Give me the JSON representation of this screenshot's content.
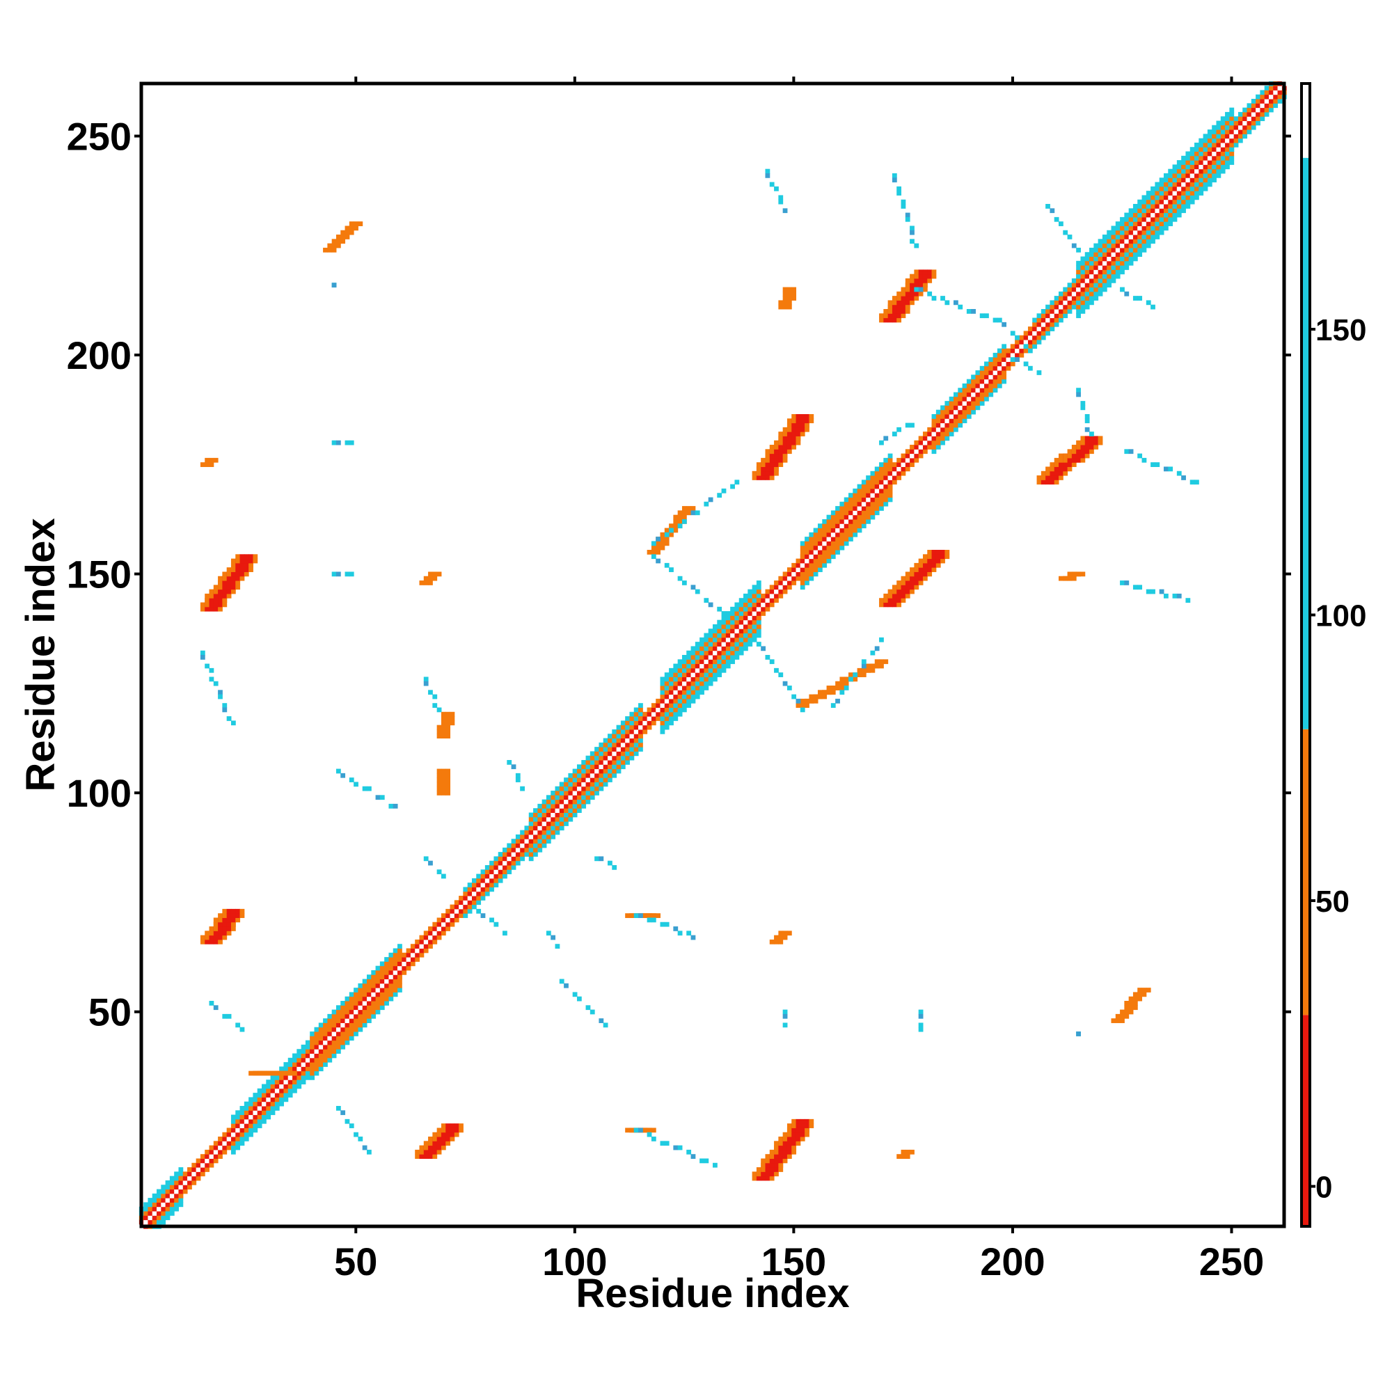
{
  "chart_data": {
    "type": "heatmap",
    "title": "",
    "xlabel": "Residue index",
    "ylabel": "Residue index",
    "xlim": [
      1,
      262
    ],
    "ylim": [
      1,
      262
    ],
    "x_ticks": [
      50,
      100,
      150,
      200,
      250
    ],
    "y_ticks": [
      50,
      100,
      150,
      200,
      250
    ],
    "colorbar": {
      "ticks": [
        0,
        50,
        100,
        150
      ],
      "range": [
        -7,
        193
      ],
      "bands": [
        {
          "from": -7,
          "to": 30,
          "color": "#e8190e"
        },
        {
          "from": 30,
          "to": 80,
          "color": "#f47a0c"
        },
        {
          "from": 80,
          "to": 180,
          "color": "#1fcbe0"
        },
        {
          "from": 180,
          "to": 193,
          "color": "#ffffff"
        }
      ]
    },
    "diagonal_segments": [
      {
        "start": 1,
        "end": 10,
        "width": 4,
        "color": "#1fcbe0"
      },
      {
        "start": 10,
        "end": 22,
        "width": 2,
        "color": "#e8190e"
      },
      {
        "start": 22,
        "end": 40,
        "width": 4,
        "color": "#1fcbe0"
      },
      {
        "start": 40,
        "end": 60,
        "width": 5,
        "color": "#f47a0c"
      },
      {
        "start": 60,
        "end": 75,
        "width": 2,
        "color": "#e8190e"
      },
      {
        "start": 75,
        "end": 90,
        "width": 3,
        "color": "#f47a0c"
      },
      {
        "start": 90,
        "end": 115,
        "width": 5,
        "color": "#1fcbe0"
      },
      {
        "start": 115,
        "end": 120,
        "width": 2,
        "color": "#e8190e"
      },
      {
        "start": 120,
        "end": 142,
        "width": 6,
        "color": "#1fcbe0"
      },
      {
        "start": 142,
        "end": 152,
        "width": 2,
        "color": "#e8190e"
      },
      {
        "start": 152,
        "end": 172,
        "width": 5,
        "color": "#f47a0c"
      },
      {
        "start": 172,
        "end": 182,
        "width": 2,
        "color": "#e8190e"
      },
      {
        "start": 182,
        "end": 198,
        "width": 4,
        "color": "#f47a0c"
      },
      {
        "start": 198,
        "end": 205,
        "width": 2,
        "color": "#e8190e"
      },
      {
        "start": 205,
        "end": 215,
        "width": 3,
        "color": "#f47a0c"
      },
      {
        "start": 215,
        "end": 250,
        "width": 6,
        "color": "#1fcbe0"
      },
      {
        "start": 250,
        "end": 262,
        "width": 3,
        "color": "#f47a0c"
      }
    ],
    "contact_strips": [
      {
        "x0": 17,
        "y0": 142,
        "x1": 25,
        "y1": 153,
        "width": 2,
        "color": "#e8190e"
      },
      {
        "x0": 17,
        "y0": 66,
        "x1": 22,
        "y1": 72,
        "width": 2,
        "color": "#e8190e"
      },
      {
        "x0": 66,
        "y0": 17,
        "x1": 72,
        "y1": 23,
        "width": 2,
        "color": "#e8190e"
      },
      {
        "x0": 143,
        "y0": 12,
        "x1": 152,
        "y1": 24,
        "width": 2,
        "color": "#e8190e"
      },
      {
        "x0": 143,
        "y0": 172,
        "x1": 152,
        "y1": 185,
        "width": 2,
        "color": "#e8190e"
      },
      {
        "x0": 172,
        "y0": 143,
        "x1": 183,
        "y1": 154,
        "width": 2,
        "color": "#e8190e"
      },
      {
        "x0": 172,
        "y0": 208,
        "x1": 180,
        "y1": 218,
        "width": 2,
        "color": "#e8190e"
      },
      {
        "x0": 208,
        "y0": 171,
        "x1": 218,
        "y1": 180,
        "width": 2,
        "color": "#e8190e"
      },
      {
        "x0": 118,
        "y0": 155,
        "x1": 126,
        "y1": 165,
        "width": 1,
        "color": "#f47a0c"
      },
      {
        "x0": 152,
        "y0": 120,
        "x1": 170,
        "y1": 130,
        "width": 1,
        "color": "#f47a0c"
      },
      {
        "x0": 27,
        "y0": 36,
        "x1": 35,
        "y1": 36,
        "width": 1,
        "color": "#f47a0c"
      },
      {
        "x0": 44,
        "y0": 224,
        "x1": 50,
        "y1": 230,
        "width": 1,
        "color": "#f47a0c"
      },
      {
        "x0": 224,
        "y0": 48,
        "x1": 230,
        "y1": 55,
        "width": 1,
        "color": "#f47a0c"
      },
      {
        "x0": 113,
        "y0": 72,
        "x1": 118,
        "y1": 72,
        "width": 1,
        "color": "#f47a0c"
      },
      {
        "x0": 113,
        "y0": 23,
        "x1": 117,
        "y1": 23,
        "width": 1,
        "color": "#f47a0c"
      },
      {
        "x0": 66,
        "y0": 148,
        "x1": 68,
        "y1": 150,
        "width": 1,
        "color": "#f47a0c"
      },
      {
        "x0": 16,
        "y0": 175,
        "x1": 17,
        "y1": 176,
        "width": 1,
        "color": "#f47a0c"
      },
      {
        "x0": 146,
        "y0": 66,
        "x1": 148,
        "y1": 68,
        "width": 1,
        "color": "#f47a0c"
      },
      {
        "x0": 175,
        "y0": 17,
        "x1": 176,
        "y1": 18,
        "width": 1,
        "color": "#f47a0c"
      },
      {
        "x0": 148,
        "y0": 211,
        "x1": 149,
        "y1": 215,
        "width": 1,
        "color": "#f47a0c"
      },
      {
        "x0": 212,
        "y0": 149,
        "x1": 215,
        "y1": 150,
        "width": 1,
        "color": "#f47a0c"
      },
      {
        "x0": 70,
        "y0": 113,
        "x1": 71,
        "y1": 118,
        "width": 1,
        "color": "#f47a0c"
      },
      {
        "x0": 70,
        "y0": 100,
        "x1": 70,
        "y1": 105,
        "width": 1,
        "color": "#f47a0c"
      }
    ],
    "sparse_contacts": [
      {
        "x0": 15,
        "y0": 132,
        "x1": 22,
        "y1": 115,
        "color": "#1fcbe0"
      },
      {
        "x0": 46,
        "y0": 105,
        "x1": 60,
        "y1": 96,
        "color": "#1fcbe0"
      },
      {
        "x0": 66,
        "y0": 126,
        "x1": 69,
        "y1": 118,
        "color": "#1fcbe0"
      },
      {
        "x0": 97,
        "y0": 57,
        "x1": 107,
        "y1": 47,
        "color": "#1fcbe0"
      },
      {
        "x0": 114,
        "y0": 72,
        "x1": 128,
        "y1": 67,
        "color": "#1fcbe0"
      },
      {
        "x0": 114,
        "y0": 23,
        "x1": 132,
        "y1": 15,
        "color": "#1fcbe0"
      },
      {
        "x0": 118,
        "y0": 157,
        "x1": 137,
        "y1": 171,
        "color": "#1fcbe0"
      },
      {
        "x0": 118,
        "y0": 154,
        "x1": 135,
        "y1": 140,
        "color": "#1fcbe0"
      },
      {
        "x0": 142,
        "y0": 134,
        "x1": 152,
        "y1": 119,
        "color": "#1fcbe0"
      },
      {
        "x0": 159,
        "y0": 120,
        "x1": 170,
        "y1": 135,
        "color": "#1fcbe0"
      },
      {
        "x0": 144,
        "y0": 242,
        "x1": 148,
        "y1": 233,
        "color": "#1fcbe0"
      },
      {
        "x0": 173,
        "y0": 241,
        "x1": 178,
        "y1": 224,
        "color": "#1fcbe0"
      },
      {
        "x0": 178,
        "y0": 215,
        "x1": 196,
        "y1": 208,
        "color": "#1fcbe0"
      },
      {
        "x0": 197,
        "y0": 208,
        "x1": 205,
        "y1": 200,
        "color": "#1fcbe0"
      },
      {
        "x0": 200,
        "y0": 199,
        "x1": 206,
        "y1": 196,
        "color": "#1fcbe0"
      },
      {
        "x0": 208,
        "y0": 234,
        "x1": 215,
        "y1": 224,
        "color": "#1fcbe0"
      },
      {
        "x0": 215,
        "y0": 192,
        "x1": 218,
        "y1": 181,
        "color": "#1fcbe0"
      },
      {
        "x0": 225,
        "y0": 215,
        "x1": 232,
        "y1": 211,
        "color": "#1fcbe0"
      },
      {
        "x0": 226,
        "y0": 178,
        "x1": 242,
        "y1": 171,
        "color": "#1fcbe0"
      },
      {
        "x0": 225,
        "y0": 148,
        "x1": 240,
        "y1": 144,
        "color": "#1fcbe0"
      },
      {
        "x0": 170,
        "y0": 180,
        "x1": 178,
        "y1": 185,
        "color": "#1fcbe0"
      },
      {
        "x0": 17,
        "y0": 52,
        "x1": 24,
        "y1": 46,
        "color": "#1fcbe0"
      },
      {
        "x0": 46,
        "y0": 28,
        "x1": 53,
        "y1": 18,
        "color": "#1fcbe0"
      },
      {
        "x0": 78,
        "y0": 73,
        "x1": 84,
        "y1": 68,
        "color": "#1fcbe0"
      },
      {
        "x0": 66,
        "y0": 85,
        "x1": 70,
        "y1": 81,
        "color": "#1fcbe0"
      },
      {
        "x0": 94,
        "y0": 68,
        "x1": 96,
        "y1": 65,
        "color": "#1fcbe0"
      },
      {
        "x0": 85,
        "y0": 107,
        "x1": 88,
        "y1": 101,
        "color": "#1fcbe0"
      },
      {
        "x0": 105,
        "y0": 85,
        "x1": 110,
        "y1": 83,
        "color": "#1fcbe0"
      },
      {
        "x0": 45,
        "y0": 180,
        "x1": 49,
        "y1": 180,
        "color": "#1fcbe0"
      },
      {
        "x0": 45,
        "y0": 150,
        "x1": 49,
        "y1": 150,
        "color": "#1fcbe0"
      },
      {
        "x0": 148,
        "y0": 50,
        "x1": 148,
        "y1": 47,
        "color": "#1fcbe0"
      },
      {
        "x0": 179,
        "y0": 50,
        "x1": 179,
        "y1": 46,
        "color": "#1fcbe0"
      },
      {
        "x0": 45,
        "y0": 216,
        "x1": 45,
        "y1": 216,
        "color": "#1fcbe0"
      },
      {
        "x0": 215,
        "y0": 45,
        "x1": 215,
        "y1": 45,
        "color": "#1fcbe0"
      }
    ]
  }
}
